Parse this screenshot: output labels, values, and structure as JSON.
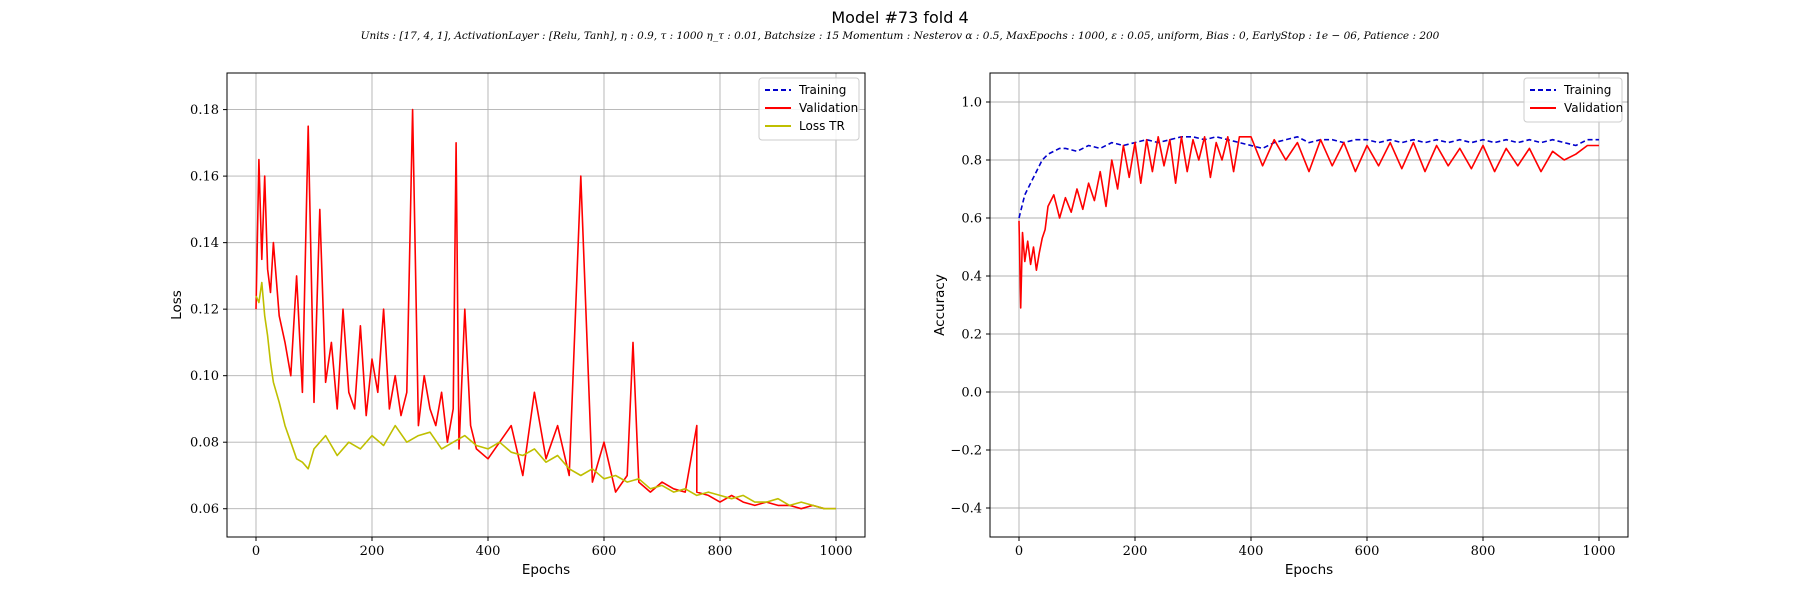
{
  "title": "Model #73 fold 4",
  "subtitle": "Units : [17, 4, 1], ActivationLayer : [Relu, Tanh], η : 0.9, τ : 1000 η_τ : 0.01, Batchsize : 15 Momentum : Nesterov α : 0.5, MaxEpochs : 1000, ε : 0.05, uniform, Bias : 0, EarlyStop : 1e − 06, Patience : 200",
  "colors": {
    "training": "#0000cc",
    "validation": "#ff0000",
    "loss_tr": "#bfbf00",
    "grid": "#b0b0b0"
  },
  "chart_data": [
    {
      "type": "line",
      "title": "",
      "xlabel": "Epochs",
      "ylabel": "Loss",
      "xlim": [
        -50,
        1050
      ],
      "ylim": [
        0.0515,
        0.191
      ],
      "xticks": [
        0,
        200,
        400,
        600,
        800,
        1000
      ],
      "xtick_labels": [
        "0",
        "200",
        "400",
        "600",
        "800",
        "1000"
      ],
      "yticks": [
        0.06,
        0.08,
        0.1,
        0.12,
        0.14,
        0.16,
        0.18
      ],
      "ytick_labels": [
        "0.06",
        "0.08",
        "0.10",
        "0.12",
        "0.14",
        "0.16",
        "0.18"
      ],
      "grid": true,
      "legend": "top-right",
      "series": [
        {
          "name": "Validation",
          "color": "#ff0000",
          "style": "solid",
          "x": [
            0,
            5,
            10,
            15,
            20,
            25,
            30,
            40,
            50,
            60,
            70,
            80,
            90,
            100,
            110,
            120,
            130,
            140,
            150,
            160,
            170,
            180,
            190,
            200,
            210,
            220,
            230,
            240,
            250,
            260,
            270,
            280,
            290,
            300,
            310,
            320,
            330,
            340,
            345,
            350,
            360,
            370,
            380,
            400,
            420,
            440,
            460,
            480,
            500,
            520,
            540,
            560,
            580,
            600,
            620,
            640,
            650,
            660,
            680,
            700,
            720,
            740,
            760,
            760,
            780,
            800,
            820,
            840,
            860,
            880,
            900,
            920,
            940,
            960,
            980,
            1000
          ],
          "y": [
            0.12,
            0.165,
            0.135,
            0.16,
            0.132,
            0.125,
            0.14,
            0.118,
            0.11,
            0.1,
            0.13,
            0.095,
            0.175,
            0.092,
            0.15,
            0.098,
            0.11,
            0.09,
            0.12,
            0.095,
            0.09,
            0.115,
            0.088,
            0.105,
            0.095,
            0.12,
            0.09,
            0.1,
            0.088,
            0.095,
            0.18,
            0.085,
            0.1,
            0.09,
            0.085,
            0.095,
            0.08,
            0.09,
            0.17,
            0.078,
            0.12,
            0.085,
            0.078,
            0.075,
            0.08,
            0.085,
            0.07,
            0.095,
            0.075,
            0.085,
            0.07,
            0.16,
            0.068,
            0.08,
            0.065,
            0.07,
            0.11,
            0.068,
            0.065,
            0.068,
            0.066,
            0.065,
            0.085,
            0.065,
            0.064,
            0.062,
            0.064,
            0.062,
            0.061,
            0.062,
            0.061,
            0.061,
            0.06,
            0.061,
            0.06,
            0.06
          ]
        },
        {
          "name": "Loss TR",
          "color": "#bfbf00",
          "style": "solid",
          "x": [
            0,
            5,
            10,
            15,
            20,
            25,
            30,
            40,
            50,
            60,
            70,
            80,
            90,
            100,
            120,
            140,
            160,
            180,
            200,
            220,
            240,
            260,
            280,
            300,
            320,
            340,
            360,
            380,
            400,
            420,
            440,
            460,
            480,
            500,
            520,
            540,
            560,
            580,
            600,
            620,
            640,
            660,
            680,
            700,
            720,
            740,
            760,
            780,
            800,
            820,
            840,
            860,
            880,
            900,
            920,
            940,
            960,
            980,
            1000
          ],
          "y": [
            0.124,
            0.122,
            0.128,
            0.118,
            0.112,
            0.104,
            0.098,
            0.092,
            0.085,
            0.08,
            0.075,
            0.074,
            0.072,
            0.078,
            0.082,
            0.076,
            0.08,
            0.078,
            0.082,
            0.079,
            0.085,
            0.08,
            0.082,
            0.083,
            0.078,
            0.08,
            0.082,
            0.079,
            0.078,
            0.08,
            0.077,
            0.076,
            0.078,
            0.074,
            0.076,
            0.072,
            0.07,
            0.072,
            0.069,
            0.07,
            0.068,
            0.069,
            0.066,
            0.067,
            0.065,
            0.066,
            0.064,
            0.065,
            0.064,
            0.063,
            0.064,
            0.062,
            0.062,
            0.063,
            0.061,
            0.062,
            0.061,
            0.06,
            0.06
          ]
        }
      ]
    },
    {
      "type": "line",
      "title": "",
      "xlabel": "Epochs",
      "ylabel": "Accuracy",
      "xlim": [
        -50,
        1050
      ],
      "ylim": [
        -0.5,
        1.1
      ],
      "xticks": [
        0,
        200,
        400,
        600,
        800,
        1000
      ],
      "xtick_labels": [
        "0",
        "200",
        "400",
        "600",
        "800",
        "1000"
      ],
      "yticks": [
        -0.4,
        -0.2,
        0.0,
        0.2,
        0.4,
        0.6,
        0.8,
        1.0
      ],
      "ytick_labels": [
        "−0.4",
        "−0.2",
        "0.0",
        "0.2",
        "0.4",
        "0.6",
        "0.8",
        "1.0"
      ],
      "grid": true,
      "legend": "top-right",
      "series": [
        {
          "name": "Training",
          "color": "#0000cc",
          "style": "dashed",
          "x": [
            0,
            5,
            10,
            20,
            30,
            40,
            50,
            60,
            70,
            80,
            100,
            120,
            140,
            160,
            180,
            200,
            220,
            240,
            260,
            280,
            300,
            320,
            340,
            360,
            380,
            400,
            420,
            440,
            460,
            480,
            500,
            520,
            540,
            560,
            580,
            600,
            620,
            640,
            660,
            680,
            700,
            720,
            740,
            760,
            780,
            800,
            820,
            840,
            860,
            880,
            900,
            920,
            940,
            960,
            980,
            1000
          ],
          "y": [
            0.6,
            0.64,
            0.68,
            0.72,
            0.76,
            0.8,
            0.82,
            0.83,
            0.84,
            0.84,
            0.83,
            0.85,
            0.84,
            0.86,
            0.85,
            0.86,
            0.87,
            0.86,
            0.87,
            0.88,
            0.88,
            0.87,
            0.88,
            0.87,
            0.86,
            0.85,
            0.84,
            0.86,
            0.87,
            0.88,
            0.86,
            0.87,
            0.87,
            0.86,
            0.87,
            0.87,
            0.86,
            0.87,
            0.86,
            0.87,
            0.86,
            0.87,
            0.86,
            0.87,
            0.86,
            0.87,
            0.86,
            0.87,
            0.86,
            0.87,
            0.86,
            0.87,
            0.86,
            0.85,
            0.87,
            0.87
          ]
        },
        {
          "name": "Validation",
          "color": "#ff0000",
          "style": "solid",
          "x": [
            0,
            3,
            6,
            10,
            15,
            20,
            25,
            30,
            35,
            40,
            45,
            50,
            60,
            70,
            80,
            90,
            100,
            110,
            120,
            130,
            140,
            150,
            160,
            170,
            180,
            190,
            200,
            210,
            220,
            230,
            240,
            250,
            260,
            270,
            280,
            290,
            300,
            310,
            320,
            330,
            340,
            350,
            360,
            370,
            380,
            390,
            400,
            420,
            440,
            460,
            480,
            500,
            520,
            540,
            560,
            580,
            600,
            620,
            640,
            660,
            680,
            700,
            720,
            740,
            760,
            780,
            800,
            820,
            840,
            860,
            880,
            900,
            920,
            940,
            960,
            980,
            1000
          ],
          "y": [
            0.59,
            0.29,
            0.55,
            0.45,
            0.52,
            0.44,
            0.5,
            0.42,
            0.48,
            0.53,
            0.56,
            0.64,
            0.68,
            0.6,
            0.67,
            0.62,
            0.7,
            0.63,
            0.72,
            0.66,
            0.76,
            0.64,
            0.8,
            0.7,
            0.85,
            0.74,
            0.86,
            0.72,
            0.87,
            0.76,
            0.88,
            0.78,
            0.87,
            0.72,
            0.88,
            0.76,
            0.87,
            0.8,
            0.88,
            0.74,
            0.86,
            0.8,
            0.88,
            0.76,
            0.88,
            0.88,
            0.88,
            0.78,
            0.87,
            0.8,
            0.86,
            0.76,
            0.87,
            0.78,
            0.86,
            0.76,
            0.85,
            0.78,
            0.86,
            0.77,
            0.86,
            0.76,
            0.85,
            0.78,
            0.84,
            0.77,
            0.85,
            0.76,
            0.84,
            0.78,
            0.84,
            0.76,
            0.83,
            0.8,
            0.82,
            0.85,
            0.85
          ]
        }
      ]
    }
  ],
  "legends": [
    [
      "Training",
      "Validation",
      "Loss TR"
    ],
    [
      "Training",
      "Validation"
    ]
  ]
}
